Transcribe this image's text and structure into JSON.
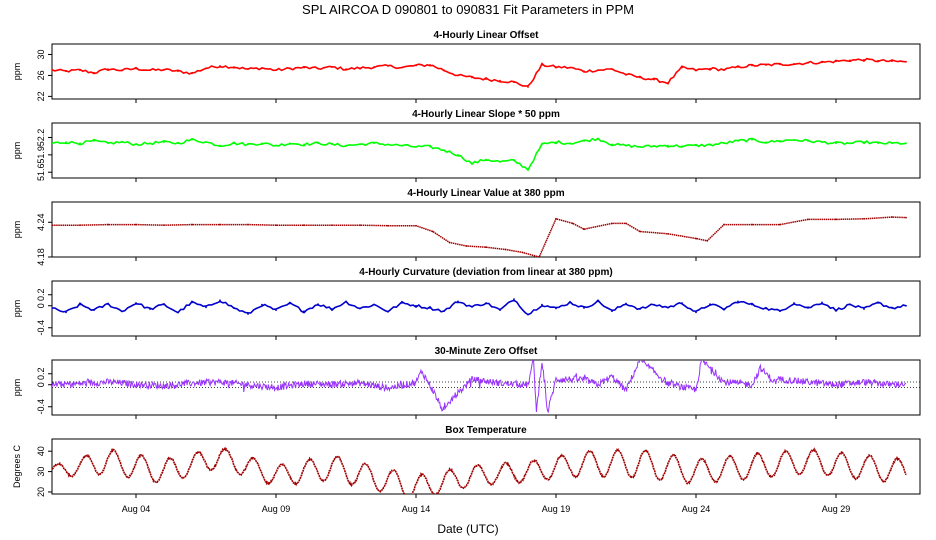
{
  "figure_title": "SPL   AIRCOA D   090801 to 090831   Fit Parameters in PPM",
  "x_axis_label": "Date (UTC)",
  "chart_data": [
    {
      "type": "line",
      "title": "4-Hourly Linear Offset",
      "ylabel": "ppm",
      "ylim": [
        21.5,
        32
      ],
      "yticks": [
        22,
        26,
        30
      ],
      "color": "#ff0000",
      "style": "jagged",
      "x": [
        1,
        1.5,
        2,
        2.5,
        3,
        3.5,
        4,
        4.5,
        5,
        5.5,
        6,
        6.5,
        7,
        7.5,
        8,
        8.5,
        9,
        9.5,
        10,
        10.5,
        11,
        11.5,
        12,
        12.5,
        13,
        13.5,
        14,
        14.5,
        15,
        15.5,
        16,
        16.5,
        17,
        17.5,
        18,
        18.5,
        19,
        19.5,
        20,
        20.5,
        21,
        21.5,
        22,
        22.5,
        23,
        23.5,
        24,
        24.5,
        25,
        25.5,
        26,
        26.5,
        27,
        27.5,
        28,
        28.5,
        29,
        29.5,
        30,
        30.5,
        31,
        31.5
      ],
      "y": [
        27,
        26.8,
        27,
        26.5,
        27.2,
        27,
        27.3,
        27,
        27.1,
        26.8,
        26.4,
        27.4,
        27.8,
        27.6,
        27.2,
        27.4,
        27,
        27.3,
        27.5,
        27.3,
        27.6,
        27.2,
        27.4,
        27.6,
        27.8,
        27.5,
        27.9,
        28,
        27,
        26,
        25.6,
        25.3,
        25,
        24.7,
        23.8,
        28,
        27.6,
        27.5,
        26.8,
        27,
        27.2,
        26.2,
        25.6,
        25.2,
        24.6,
        27.5,
        27,
        27.3,
        27.1,
        27.6,
        27.9,
        28,
        28.1,
        28.2,
        28.4,
        28.5,
        28.7,
        28.9,
        29,
        28.8,
        28.7,
        28.6
      ]
    },
    {
      "type": "line",
      "title": "4-Hourly Linear Slope * 50 ppm",
      "ylabel": "ppm",
      "ylim": [
        51.5,
        52.45
      ],
      "yticks": [
        51.6,
        51.9,
        52.2
      ],
      "color": "#00ff00",
      "style": "jagged",
      "x": [
        1,
        1.5,
        2,
        2.5,
        3,
        3.5,
        4,
        4.5,
        5,
        5.5,
        6,
        6.5,
        7,
        7.5,
        8,
        8.5,
        9,
        9.5,
        10,
        10.5,
        11,
        11.5,
        12,
        12.5,
        13,
        13.5,
        14,
        14.5,
        15,
        15.5,
        16,
        16.5,
        17,
        17.5,
        18,
        18.5,
        19,
        19.5,
        20,
        20.5,
        21,
        21.5,
        22,
        22.5,
        23,
        23.5,
        24,
        24.5,
        25,
        25.5,
        26,
        26.5,
        27,
        27.5,
        28,
        28.5,
        29,
        29.5,
        30,
        30.5,
        31,
        31.5
      ],
      "y": [
        52.1,
        52.12,
        52.1,
        52.14,
        52.1,
        52.12,
        52.08,
        52.1,
        52.12,
        52.1,
        52.16,
        52.12,
        52.06,
        52.1,
        52.08,
        52.1,
        52.06,
        52.1,
        52.08,
        52.1,
        52.08,
        52.06,
        52.08,
        52.1,
        52.08,
        52.06,
        52.04,
        52.04,
        51.98,
        51.9,
        51.75,
        51.82,
        51.78,
        51.8,
        51.65,
        52.08,
        52.12,
        52.1,
        52.14,
        52.18,
        52.08,
        52.06,
        52.04,
        52.05,
        52.06,
        52.05,
        52.06,
        52.07,
        52.1,
        52.14,
        52.16,
        52.12,
        52.14,
        52.16,
        52.14,
        52.12,
        52.1,
        52.1,
        52.12,
        52.1,
        52.1,
        52.1
      ]
    },
    {
      "type": "line",
      "title": "4-Hourly Linear Value at 380 ppm",
      "ylabel": "ppm",
      "ylim": [
        4.18,
        4.275
      ],
      "yticks": [
        4.18,
        4.24
      ],
      "ytick_labels": [
        "4.18",
        "4.24"
      ],
      "color": "#a00000",
      "style": "smooth",
      "x": [
        1,
        2,
        3,
        4,
        5,
        6,
        7,
        8,
        9,
        10,
        11,
        12,
        13,
        14,
        14.6,
        15.2,
        15.8,
        16.5,
        17.2,
        17.8,
        18.4,
        19.0,
        19.6,
        20,
        21,
        21.5,
        22,
        23,
        24,
        24.4,
        25,
        26,
        27,
        28,
        29,
        30,
        31,
        31.5
      ],
      "y": [
        4.235,
        4.235,
        4.236,
        4.236,
        4.235,
        4.236,
        4.236,
        4.236,
        4.235,
        4.235,
        4.235,
        4.235,
        4.234,
        4.234,
        4.224,
        4.205,
        4.199,
        4.197,
        4.193,
        4.188,
        4.18,
        4.246,
        4.238,
        4.228,
        4.238,
        4.238,
        4.224,
        4.22,
        4.212,
        4.208,
        4.236,
        4.236,
        4.236,
        4.245,
        4.245,
        4.246,
        4.249,
        4.248
      ]
    },
    {
      "type": "line",
      "title": "4-Hourly Curvature (deviation from linear at 380 ppm)",
      "ylabel": "ppm",
      "ylim": [
        -0.55,
        0.45
      ],
      "yticks": [
        -0.4,
        0,
        0.2
      ],
      "ytick_labels": [
        "-0.4",
        "0",
        "0.2"
      ],
      "color": "#0000cc",
      "style": "jagged",
      "x": [
        1,
        1.5,
        2,
        2.5,
        3,
        3.5,
        4,
        4.5,
        5,
        5.5,
        6,
        6.5,
        7,
        7.5,
        8,
        8.5,
        9,
        9.5,
        10,
        10.5,
        11,
        11.5,
        12,
        12.5,
        13,
        13.5,
        14,
        14.5,
        15,
        15.5,
        16,
        16.5,
        17,
        17.5,
        18,
        18.5,
        19,
        19.5,
        20,
        20.5,
        21,
        21.5,
        22,
        22.5,
        23,
        23.5,
        24,
        24.5,
        25,
        25.5,
        26,
        26.5,
        27,
        27.5,
        28,
        28.5,
        29,
        29.5,
        30,
        30.5,
        31,
        31.5
      ],
      "y": [
        -0.05,
        -0.12,
        0.02,
        -0.08,
        0.03,
        -0.1,
        0.05,
        -0.06,
        0.02,
        -0.12,
        0.06,
        -0.03,
        0.1,
        -0.04,
        -0.15,
        0.02,
        -0.08,
        0.04,
        -0.1,
        0.03,
        -0.06,
        0.07,
        -0.05,
        0.02,
        -0.1,
        0.05,
        0,
        -0.04,
        -0.1,
        0.08,
        -0.02,
        0.05,
        -0.08,
        0.12,
        -0.16,
        0.02,
        -0.05,
        0.06,
        -0.04,
        0.08,
        -0.1,
        0.04,
        -0.06,
        0.02,
        -0.03,
        0.05,
        -0.12,
        0.03,
        -0.06,
        0.08,
        0.02,
        -0.05,
        -0.1,
        0.05,
        -0.04,
        0.06,
        -0.08,
        0.02,
        -0.06,
        0.05,
        -0.04,
        0
      ]
    },
    {
      "type": "line",
      "title": "30-Minute Zero Offset",
      "ylabel": "ppm",
      "ylim": [
        -0.55,
        0.45
      ],
      "yticks": [
        -0.4,
        0,
        0.2
      ],
      "ytick_labels": [
        "-0.4",
        "0",
        "0.2"
      ],
      "reference_lines": [
        0.05,
        -0.05
      ],
      "color": "#9933ff",
      "style": "noisy",
      "x": [
        1,
        2,
        3,
        4,
        5,
        6,
        7,
        8,
        9,
        10,
        11,
        12,
        13,
        14,
        14.2,
        14.6,
        15,
        15.3,
        16,
        17,
        18,
        18.2,
        18.3,
        18.5,
        18.7,
        19,
        20,
        20.5,
        21,
        21.5,
        22,
        23,
        24,
        24.2,
        25,
        26,
        26.3,
        26.8,
        27,
        28,
        29,
        30,
        31,
        31.5
      ],
      "y": [
        0,
        0.02,
        0.05,
        0.01,
        -0.02,
        0.03,
        0.05,
        0,
        -0.05,
        0.02,
        0.01,
        0.03,
        -0.06,
        0.04,
        0.25,
        -0.1,
        -0.5,
        -0.25,
        0.1,
        0.03,
        0,
        0.45,
        -0.5,
        0.45,
        -0.5,
        0.1,
        0.1,
        0,
        0.15,
        -0.1,
        0.45,
        0.02,
        -0.1,
        0.45,
        0.05,
        0,
        0.3,
        0.05,
        0.1,
        0.05,
        0,
        0.05,
        0,
        0.02
      ]
    },
    {
      "type": "line",
      "title": "Box Temperature",
      "ylabel": "Degrees C",
      "ylim": [
        19,
        46
      ],
      "yticks": [
        20,
        30,
        40
      ],
      "color": "#a00000",
      "style": "diurnal",
      "x_range": [
        1,
        31.5
      ],
      "mean_temp": [
        30,
        35,
        30,
        37,
        28,
        32,
        22,
        28,
        30,
        34,
        34,
        30,
        35,
        30
      ],
      "mean_days": [
        1,
        3,
        5,
        7,
        9,
        11,
        14,
        16,
        18,
        20,
        22,
        24,
        28,
        31.5
      ],
      "amplitude": [
        3,
        6,
        6,
        5,
        5,
        6,
        6,
        5,
        5,
        6,
        7,
        6,
        6,
        6
      ],
      "amp_days": [
        1,
        3,
        5,
        7,
        9,
        11,
        14,
        16,
        18,
        20,
        22,
        24,
        28,
        31.5
      ],
      "dotted_noise": true
    }
  ],
  "x_axis": {
    "start_day": 1,
    "end_day": 32,
    "ticks": [
      {
        "day": 4,
        "label": "Aug 04"
      },
      {
        "day": 9,
        "label": "Aug 09"
      },
      {
        "day": 14,
        "label": "Aug 14"
      },
      {
        "day": 19,
        "label": "Aug 19"
      },
      {
        "day": 24,
        "label": "Aug 24"
      },
      {
        "day": 29,
        "label": "Aug 29"
      }
    ]
  }
}
